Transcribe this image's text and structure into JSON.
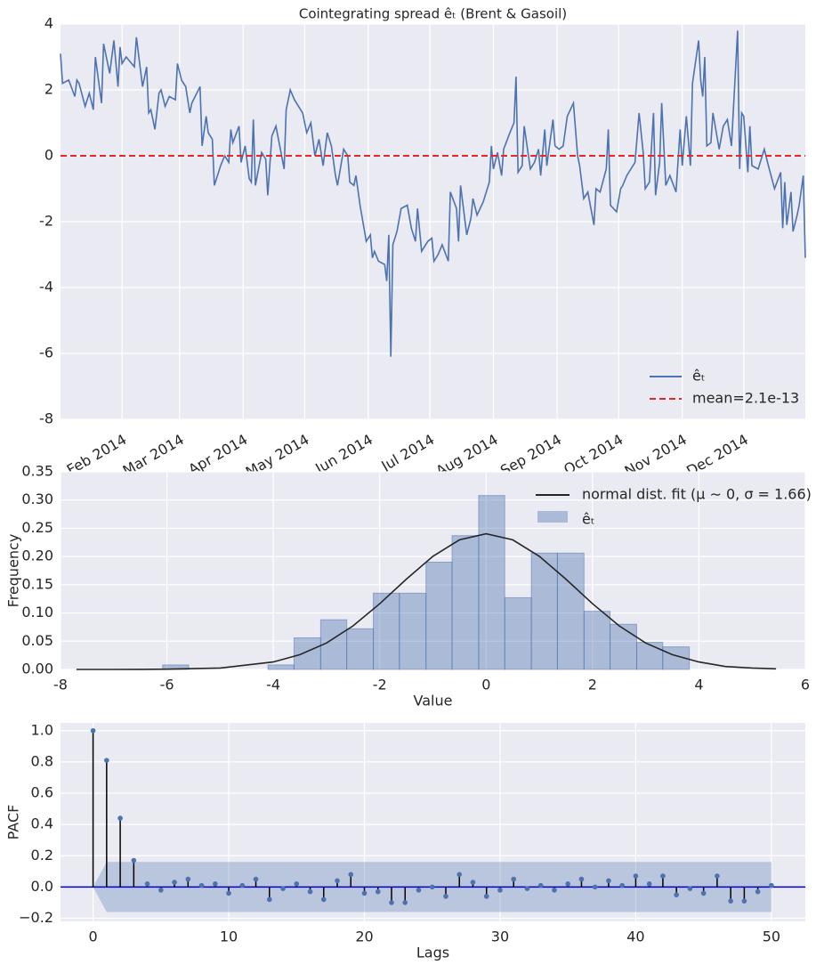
{
  "chart_data": [
    {
      "type": "line",
      "title": "Cointegrating spread êₜ (Brent & Gasoil)",
      "x": [
        2,
        3,
        6,
        9,
        10,
        11,
        14,
        16,
        18,
        19,
        22,
        23,
        26,
        28,
        30,
        31,
        32,
        34,
        38,
        39,
        40,
        42,
        44,
        45,
        46,
        48,
        50,
        51,
        53,
        55,
        58,
        59,
        61,
        63,
        65,
        66,
        70,
        71,
        73,
        74,
        76,
        77,
        80,
        82,
        84,
        85,
        86,
        89,
        90,
        92,
        94,
        95,
        96,
        97,
        100,
        102,
        103,
        105,
        107,
        111,
        112,
        114,
        116,
        120,
        122,
        124,
        126,
        128,
        130,
        132,
        134,
        136,
        137,
        140,
        142,
        143,
        145,
        146,
        148,
        151,
        153,
        154,
        155,
        157,
        160,
        161,
        162,
        163,
        164,
        166,
        168,
        171,
        173,
        175,
        176,
        178,
        181,
        183,
        184,
        186,
        188,
        191,
        192,
        195,
        196,
        197,
        200,
        202,
        203,
        205,
        208,
        211,
        212,
        213,
        215,
        217,
        218,
        221,
        223,
        224,
        225,
        227,
        228,
        231,
        233,
        235,
        236,
        238,
        239,
        242,
        243,
        245,
        247,
        249,
        252,
        254,
        255,
        257,
        259,
        262,
        263,
        265,
        268,
        269,
        270,
        273,
        275,
        276,
        278,
        279,
        282,
        284,
        286,
        287,
        289,
        291,
        292,
        294,
        295,
        297,
        299,
        302,
        304,
        305,
        307,
        309,
        310,
        313,
        314,
        315,
        316,
        317,
        319,
        320,
        323,
        325,
        327,
        329,
        332,
        333,
        334,
        335,
        337,
        338,
        339,
        342,
        343,
        345,
        347,
        350,
        353,
        354,
        355,
        356,
        358,
        359,
        361,
        362,
        364,
        365
      ],
      "series": [
        {
          "name": "êₜ",
          "color": "#4c72b0",
          "values": [
            3.1,
            2.2,
            2.3,
            1.8,
            2.3,
            2.2,
            1.5,
            1.9,
            1.4,
            3.0,
            1.6,
            3.4,
            2.5,
            3.5,
            2.1,
            3.3,
            2.8,
            3.0,
            2.7,
            3.6,
            3.1,
            2.1,
            2.7,
            1.3,
            1.4,
            0.8,
            1.9,
            2.0,
            1.5,
            1.8,
            1.7,
            2.8,
            2.3,
            2.1,
            1.3,
            1.6,
            2.1,
            0.3,
            1.2,
            0.7,
            0.5,
            -0.9,
            -0.3,
            0.0,
            -0.2,
            0.8,
            0.4,
            0.9,
            -0.2,
            0.3,
            -0.7,
            -0.8,
            1.1,
            -0.9,
            0.1,
            -0.1,
            -1.2,
            0.6,
            0.9,
            -0.4,
            1.4,
            2.0,
            1.7,
            1.3,
            0.7,
            1.0,
            0.0,
            0.5,
            -0.3,
            0.7,
            0.3,
            -0.6,
            -0.9,
            0.2,
            0.0,
            -0.8,
            -0.9,
            -0.6,
            -1.5,
            -2.6,
            -2.4,
            -3.1,
            -2.9,
            -3.2,
            -3.3,
            -3.8,
            -2.4,
            -6.1,
            -2.7,
            -2.3,
            -1.6,
            -1.5,
            -2.2,
            -2.6,
            -1.6,
            -2.9,
            -2.6,
            -2.5,
            -3.2,
            -3.0,
            -2.7,
            -3.2,
            -1.1,
            -1.6,
            -2.6,
            -0.9,
            -2.4,
            -1.9,
            -1.3,
            -1.8,
            -1.4,
            -0.8,
            0.3,
            -0.4,
            0.1,
            -0.6,
            0.2,
            0.7,
            1.0,
            2.4,
            -0.5,
            -0.3,
            0.9,
            -0.4,
            -0.2,
            0.2,
            -0.6,
            0.8,
            -0.3,
            1.1,
            0.3,
            0.2,
            0.3,
            1.2,
            1.6,
            0.0,
            -0.3,
            -1.3,
            -1.1,
            -2.1,
            -1.0,
            -1.1,
            -0.4,
            0.8,
            -1.5,
            -1.7,
            -1.0,
            -0.9,
            -0.6,
            -0.5,
            -0.2,
            1.3,
            0.1,
            -1.0,
            -0.8,
            1.3,
            -1.2,
            -0.2,
            1.6,
            -0.9,
            -0.6,
            -1.1,
            0.8,
            -0.3,
            1.2,
            -0.3,
            2.2,
            3.5,
            2.3,
            1.8,
            3.0,
            0.3,
            0.4,
            1.3,
            0.2,
            0.9,
            1.1,
            0.3,
            3.8,
            -0.4,
            1.3,
            1.2,
            -0.5,
            0.9,
            -0.3,
            -0.4,
            -0.2,
            0.2,
            -0.3,
            -1.0,
            -0.5,
            -2.2,
            -0.8,
            -2.1,
            -1.1,
            -2.3,
            -1.8,
            -1.5,
            -0.6,
            -3.1
          ]
        }
      ],
      "hline": {
        "name": "mean=2.1e-13",
        "value": 2.1e-13,
        "color": "#e8262a"
      },
      "xlim": [
        2,
        365
      ],
      "xticks": [
        {
          "value": 32,
          "label": "Feb 2014"
        },
        {
          "value": 60,
          "label": "Mar 2014"
        },
        {
          "value": 91,
          "label": "Apr 2014"
        },
        {
          "value": 121,
          "label": "May 2014"
        },
        {
          "value": 152,
          "label": "Jun 2014"
        },
        {
          "value": 182,
          "label": "Jul 2014"
        },
        {
          "value": 213,
          "label": "Aug 2014"
        },
        {
          "value": 244,
          "label": "Sep 2014"
        },
        {
          "value": 274,
          "label": "Oct 2014"
        },
        {
          "value": 305,
          "label": "Nov 2014"
        },
        {
          "value": 335,
          "label": "Dec 2014"
        }
      ],
      "ylim": [
        -8,
        4
      ],
      "yticks": [
        -8,
        -6,
        -4,
        -2,
        0,
        2,
        4
      ],
      "grid": true,
      "legend": "lower right"
    },
    {
      "type": "histogram",
      "xlabel": "Value",
      "ylabel": "Frequency",
      "bins": [
        -6.08,
        -5.59,
        -5.09,
        -4.6,
        -4.1,
        -3.61,
        -3.11,
        -2.62,
        -2.12,
        -1.63,
        -1.13,
        -0.64,
        -0.14,
        0.35,
        0.85,
        1.34,
        1.84,
        2.33,
        2.83,
        3.32,
        3.82
      ],
      "counts": [
        0.008,
        0,
        0,
        0,
        0.008,
        0.056,
        0.088,
        0.072,
        0.135,
        0.135,
        0.19,
        0.237,
        0.308,
        0.127,
        0.206,
        0.206,
        0.103,
        0.08,
        0.048,
        0.04
      ],
      "name": "êₜ",
      "color": "#4c72b0",
      "curve": {
        "name": "normal dist. fit (μ ∼ 0, σ = 1.66)",
        "color": "#262626",
        "x": [
          -7.7,
          -7,
          -6.5,
          -6,
          -5,
          -4,
          -3.5,
          -3,
          -2.5,
          -2,
          -1.5,
          -1,
          -0.5,
          0,
          0.5,
          1,
          1.5,
          2,
          2.5,
          3,
          3.5,
          4,
          4.5,
          5,
          5.45
        ],
        "values": [
          0,
          0,
          0.0001,
          0.0004,
          0.0026,
          0.0132,
          0.0261,
          0.0469,
          0.0773,
          0.1163,
          0.1598,
          0.2004,
          0.2296,
          0.2403,
          0.2296,
          0.2004,
          0.1598,
          0.1163,
          0.0773,
          0.0469,
          0.0261,
          0.0132,
          0.0052,
          0.0026,
          0.0011
        ]
      },
      "xlim": [
        -8,
        6
      ],
      "xticks": [
        -8,
        -6,
        -4,
        -2,
        0,
        2,
        4,
        6
      ],
      "ylim": [
        0,
        0.35
      ],
      "yticks": [
        {
          "value": 0,
          "label": "0.00"
        },
        {
          "value": 0.05,
          "label": "0.05"
        },
        {
          "value": 0.1,
          "label": "0.10"
        },
        {
          "value": 0.15,
          "label": "0.15"
        },
        {
          "value": 0.2,
          "label": "0.20"
        },
        {
          "value": 0.25,
          "label": "0.25"
        },
        {
          "value": 0.3,
          "label": "0.30"
        },
        {
          "value": 0.35,
          "label": "0.35"
        }
      ],
      "grid": true,
      "legend": "upper right"
    },
    {
      "type": "stem",
      "xlabel": "Lags",
      "ylabel": "PACF",
      "color": "#4c72b0",
      "stem_color": "#000000",
      "baseline_color": "#0000cc",
      "x": [
        0,
        1,
        2,
        3,
        4,
        5,
        6,
        7,
        8,
        9,
        10,
        11,
        12,
        13,
        14,
        15,
        16,
        17,
        18,
        19,
        20,
        21,
        22,
        23,
        24,
        25,
        26,
        27,
        28,
        29,
        30,
        31,
        32,
        33,
        34,
        35,
        36,
        37,
        38,
        39,
        40,
        41,
        42,
        43,
        44,
        45,
        46,
        47,
        48,
        49,
        50
      ],
      "values": [
        1.0,
        0.81,
        0.44,
        0.17,
        0.02,
        -0.02,
        0.03,
        0.05,
        0.01,
        0.02,
        -0.04,
        0.01,
        0.05,
        -0.08,
        -0.01,
        0.02,
        -0.03,
        -0.08,
        0.04,
        0.08,
        -0.04,
        -0.03,
        -0.1,
        -0.1,
        -0.02,
        0.0,
        -0.06,
        0.08,
        0.03,
        -0.06,
        -0.02,
        0.05,
        -0.01,
        0.01,
        -0.02,
        0.02,
        0.05,
        0.0,
        0.04,
        0.01,
        0.07,
        0.02,
        0.07,
        -0.05,
        -0.01,
        -0.04,
        0.07,
        -0.09,
        -0.09,
        -0.03,
        0.01
      ],
      "band": {
        "x": [
          0,
          1,
          50
        ],
        "upper": [
          0,
          0.16,
          0.16
        ],
        "lower": [
          0,
          -0.16,
          -0.16
        ]
      },
      "xlim": [
        -2.4,
        52.5
      ],
      "xticks": [
        0,
        10,
        20,
        30,
        40,
        50
      ],
      "ylim": [
        -0.22,
        1.05
      ],
      "yticks": [
        {
          "value": -0.2,
          "label": "−0.2"
        },
        {
          "value": 0,
          "label": "0.0"
        },
        {
          "value": 0.2,
          "label": "0.2"
        },
        {
          "value": 0.4,
          "label": "0.4"
        },
        {
          "value": 0.6,
          "label": "0.6"
        },
        {
          "value": 0.8,
          "label": "0.8"
        },
        {
          "value": 1,
          "label": "1.0"
        }
      ],
      "grid": true
    }
  ]
}
